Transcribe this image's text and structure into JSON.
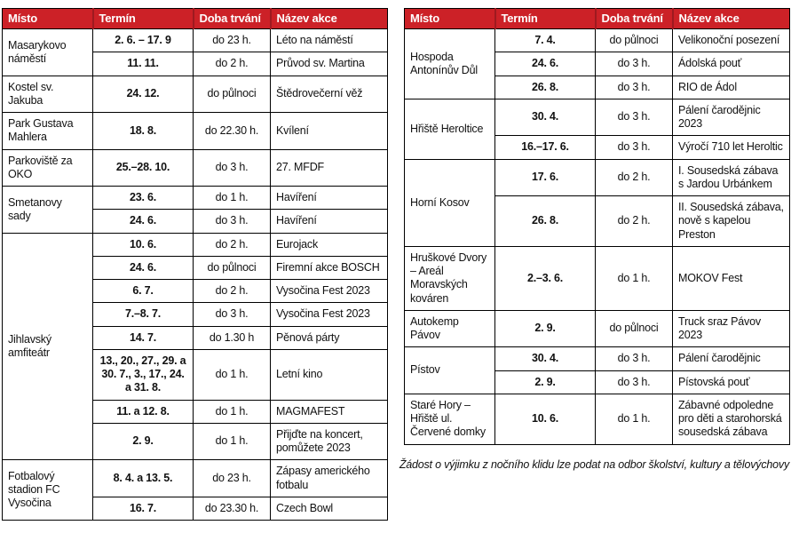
{
  "page": {
    "background": "#ffffff",
    "accent_red": "#cc2127",
    "header_divider_red": "#9e1a20",
    "border_color": "#000000",
    "header_text_color": "#ffffff"
  },
  "tables": [
    {
      "id": "left-events-table",
      "headers": [
        "Místo",
        "Termín",
        "Doba trvání",
        "Název akce"
      ],
      "groups": [
        {
          "place": "Masarykovo náměstí",
          "events": [
            {
              "date": "2. 6. – 17. 9",
              "duration": "do 23 h.",
              "name": "Léto na náměstí"
            },
            {
              "date": "11. 11.",
              "duration": "do 2 h.",
              "name": "Průvod sv. Martina"
            }
          ]
        },
        {
          "place": "Kostel sv. Jakuba",
          "events": [
            {
              "date": "24. 12.",
              "duration": "do půlnoci",
              "name": "Štědrovečerní věž"
            }
          ]
        },
        {
          "place": "Park Gustava Mahlera",
          "events": [
            {
              "date": "18. 8.",
              "duration": "do 22.30 h.",
              "name": "Kvílení"
            }
          ]
        },
        {
          "place": "Parkoviště za OKO",
          "events": [
            {
              "date": "25.–28. 10.",
              "duration": "do 3 h.",
              "name": "27. MFDF"
            }
          ]
        },
        {
          "place": "Smetanovy sady",
          "events": [
            {
              "date": "23. 6.",
              "duration": "do 1 h.",
              "name": "Havíření"
            },
            {
              "date": "24. 6.",
              "duration": "do 3 h.",
              "name": "Havíření"
            }
          ]
        },
        {
          "place": "Jihlavský amfiteátr",
          "events": [
            {
              "date": "10. 6.",
              "duration": "do 2 h.",
              "name": "Eurojack"
            },
            {
              "date": "24. 6.",
              "duration": "do půlnoci",
              "name": "Firemní akce BOSCH"
            },
            {
              "date": "6. 7.",
              "duration": "do 2 h.",
              "name": "Vysočina Fest 2023"
            },
            {
              "date": "7.–8. 7.",
              "duration": "do 3 h.",
              "name": "Vysočina Fest 2023"
            },
            {
              "date": "14. 7.",
              "duration": "do 1.30 h",
              "name": "Pěnová párty"
            },
            {
              "date": "13., 20., 27., 29. a 30. 7., 3., 17., 24. a 31. 8.",
              "duration": "do 1 h.",
              "name": "Letní kino"
            },
            {
              "date": "11. a 12. 8.",
              "duration": "do 1 h.",
              "name": "MAGMAFEST"
            },
            {
              "date": "2. 9.",
              "duration": "do 1 h.",
              "name": "Přijďte na koncert, pomůžete 2023"
            }
          ]
        },
        {
          "place": "Fotbalový stadion FC Vysočina",
          "events": [
            {
              "date": "8. 4. a 13. 5.",
              "duration": "do 23 h.",
              "name": "Zápasy amerického fotbalu"
            },
            {
              "date": "16. 7.",
              "duration": "do 23.30 h.",
              "name": "Czech Bowl"
            }
          ]
        }
      ]
    },
    {
      "id": "right-events-table",
      "headers": [
        "Místo",
        "Termín",
        "Doba trvání",
        "Název akce"
      ],
      "groups": [
        {
          "place": "Hospoda Antonínův Důl",
          "events": [
            {
              "date": "7. 4.",
              "duration": "do půlnoci",
              "name": "Velikonoční posezení"
            },
            {
              "date": "24. 6.",
              "duration": "do 3 h.",
              "name": "Ádolská pouť"
            },
            {
              "date": "26. 8.",
              "duration": "do 3 h.",
              "name": "RIO de Ádol"
            }
          ]
        },
        {
          "place": "Hřiště Heroltice",
          "events": [
            {
              "date": "30. 4.",
              "duration": "do 3 h.",
              "name": "Pálení čarodějnic 2023"
            },
            {
              "date": "16.–17. 6.",
              "duration": "do 3 h.",
              "name": "Výročí 710 let Heroltic"
            }
          ]
        },
        {
          "place": "Horní Kosov",
          "events": [
            {
              "date": "17. 6.",
              "duration": "do 2 h.",
              "name": "I. Sousedská zábava s Jardou Urbánkem"
            },
            {
              "date": "26. 8.",
              "duration": "do 2 h.",
              "name": "II. Sousedská zábava, nově s kapelou Preston"
            }
          ]
        },
        {
          "place": "Hruškové Dvory – Areál Moravských kováren",
          "events": [
            {
              "date": "2.–3. 6.",
              "duration": "do 1 h.",
              "name": "MOKOV Fest"
            }
          ]
        },
        {
          "place": "Autokemp Pávov",
          "events": [
            {
              "date": "2. 9.",
              "duration": "do půlnoci",
              "name": "Truck sraz Pávov 2023"
            }
          ]
        },
        {
          "place": "Pístov",
          "events": [
            {
              "date": "30. 4.",
              "duration": "do 3 h.",
              "name": "Pálení čarodějnic"
            },
            {
              "date": "2. 9.",
              "duration": "do 3 h.",
              "name": "Pístovská pouť"
            }
          ]
        },
        {
          "place": "Staré Hory – Hřiště ul. Červené domky",
          "events": [
            {
              "date": "10. 6.",
              "duration": "do 1 h.",
              "name": "Zábavné odpoledne pro děti a starohorská sousedská zábava"
            }
          ]
        }
      ]
    }
  ],
  "footnote": "Žádost o výjimku z nočního klidu lze podat na odbor školství, kultury a tělovýchovy"
}
